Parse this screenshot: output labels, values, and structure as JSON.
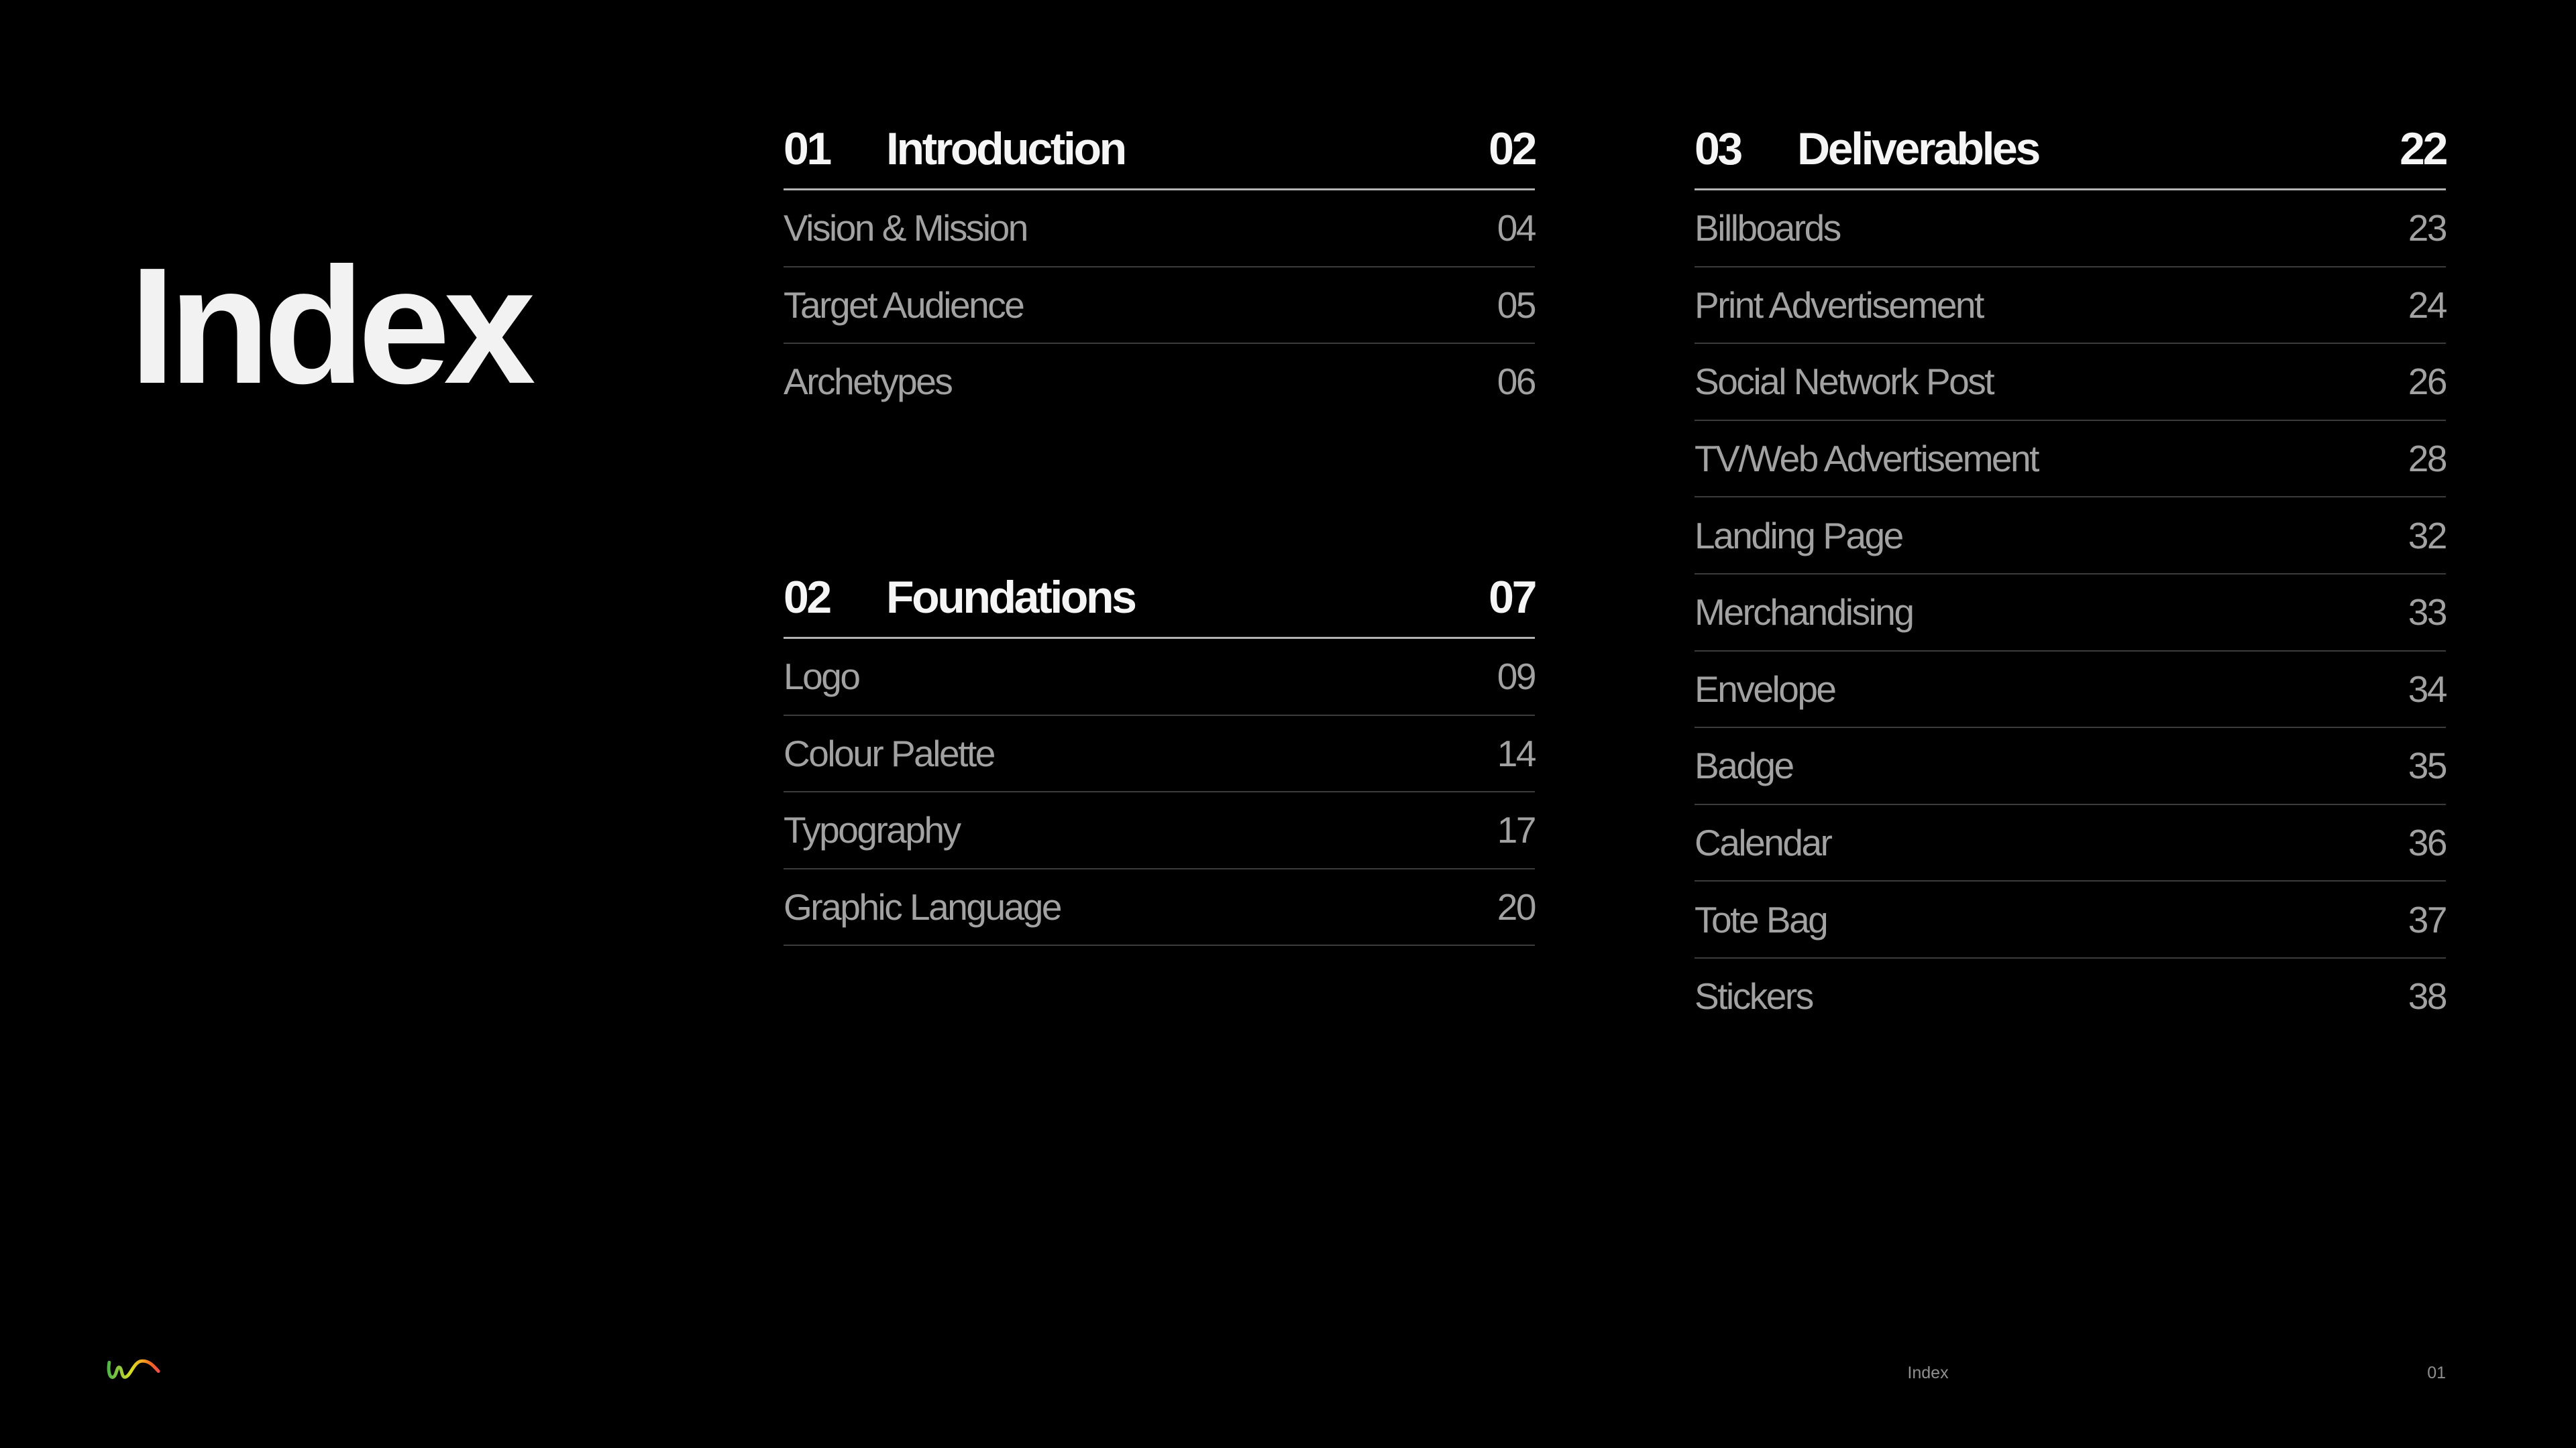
{
  "slide": {
    "title": "Index",
    "footer": {
      "section_label": "Index",
      "page_number": "01",
      "logo": "wave-squiggle-logo"
    }
  },
  "colors": {
    "background": "#000000",
    "title_text": "#f2f2f2",
    "heading_text": "#f5f5f5",
    "item_text": "#a2a2a2",
    "header_rule": "#b3b3b3",
    "item_rule": "#3c3c3c",
    "footer_text": "#8f8f8f",
    "logo_gradient": [
      "#3fae49",
      "#8dc63f",
      "#d7df23",
      "#f5a623",
      "#f26522",
      "#ed4066"
    ]
  },
  "sections": [
    {
      "number": "01",
      "title": "Introduction",
      "page": "02",
      "rule_after_last_item": false,
      "items": [
        {
          "label": "Vision & Mission",
          "page": "04"
        },
        {
          "label": "Target Audience",
          "page": "05"
        },
        {
          "label": "Archetypes",
          "page": "06"
        }
      ]
    },
    {
      "number": "02",
      "title": "Foundations",
      "page": "07",
      "rule_after_last_item": true,
      "items": [
        {
          "label": "Logo",
          "page": "09"
        },
        {
          "label": "Colour Palette",
          "page": "14"
        },
        {
          "label": "Typography",
          "page": "17"
        },
        {
          "label": "Graphic Language",
          "page": "20"
        }
      ]
    },
    {
      "number": "03",
      "title": "Deliverables",
      "page": "22",
      "rule_after_last_item": false,
      "items": [
        {
          "label": "Billboards",
          "page": "23"
        },
        {
          "label": "Print Advertisement",
          "page": "24"
        },
        {
          "label": "Social Network Post",
          "page": "26"
        },
        {
          "label": "TV/Web Advertisement",
          "page": "28"
        },
        {
          "label": "Landing Page",
          "page": "32"
        },
        {
          "label": "Merchandising",
          "page": "33"
        },
        {
          "label": "Envelope",
          "page": "34"
        },
        {
          "label": "Badge",
          "page": "35"
        },
        {
          "label": "Calendar",
          "page": "36"
        },
        {
          "label": "Tote Bag",
          "page": "37"
        },
        {
          "label": "Stickers",
          "page": "38"
        }
      ]
    }
  ]
}
